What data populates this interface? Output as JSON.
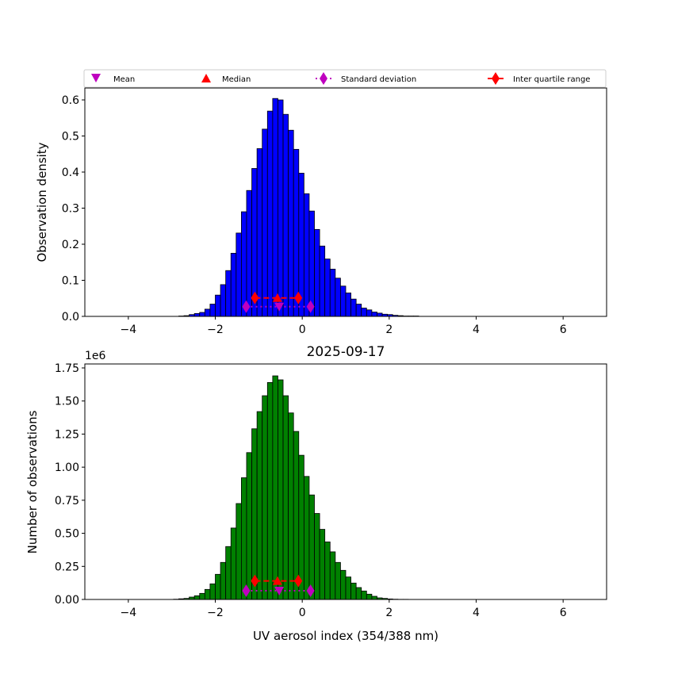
{
  "chart_data": [
    {
      "type": "bar",
      "subtype": "histogram",
      "ylabel": "Observation density",
      "xlim": [
        -5,
        7
      ],
      "ylim": [
        0,
        0.633
      ],
      "xticks": [
        "−4",
        "−2",
        "0",
        "2",
        "4",
        "6"
      ],
      "xtick_values": [
        -4,
        -2,
        0,
        2,
        4,
        6
      ],
      "yticks": [
        "0.0",
        "0.1",
        "0.2",
        "0.3",
        "0.4",
        "0.5",
        "0.6"
      ],
      "ytick_values": [
        0,
        0.1,
        0.2,
        0.3,
        0.4,
        0.5,
        0.6
      ],
      "bar_color": "#0000ff",
      "bin_start": -2.96,
      "bin_width": 0.12,
      "values": [
        0,
        0.001,
        0.002,
        0.005,
        0.008,
        0.011,
        0.02,
        0.034,
        0.059,
        0.088,
        0.127,
        0.175,
        0.231,
        0.29,
        0.349,
        0.41,
        0.465,
        0.519,
        0.569,
        0.604,
        0.6,
        0.56,
        0.516,
        0.463,
        0.397,
        0.34,
        0.292,
        0.241,
        0.195,
        0.159,
        0.131,
        0.106,
        0.084,
        0.065,
        0.048,
        0.034,
        0.023,
        0.018,
        0.012,
        0.009,
        0.006,
        0.005,
        0.003,
        0.002,
        0.001,
        0.001,
        0.001
      ],
      "stats": {
        "mean": -0.53,
        "median": -0.57,
        "std_range": [
          -1.29,
          0.19
        ],
        "iqr": [
          -1.09,
          -0.09
        ],
        "mean_y": 0.027,
        "median_y": 0.051
      }
    },
    {
      "type": "bar",
      "subtype": "histogram",
      "title": "2025-09-17",
      "xlabel": "UV aerosol index (354/388 nm)",
      "ylabel": "Number of observations",
      "y_offset_label": "1e6",
      "xlim": [
        -5,
        7
      ],
      "ylim": [
        0,
        1.78
      ],
      "xticks": [
        "−4",
        "−2",
        "0",
        "2",
        "4",
        "6"
      ],
      "xtick_values": [
        -4,
        -2,
        0,
        2,
        4,
        6
      ],
      "yticks": [
        "0.00",
        "0.25",
        "0.50",
        "0.75",
        "1.00",
        "1.25",
        "1.50",
        "1.75"
      ],
      "ytick_values": [
        0,
        0.25,
        0.5,
        0.75,
        1.0,
        1.25,
        1.5,
        1.75
      ],
      "bar_color": "#008000",
      "bin_start": -2.96,
      "bin_width": 0.12,
      "values": [
        0.002,
        0.005,
        0.008,
        0.018,
        0.028,
        0.046,
        0.076,
        0.118,
        0.19,
        0.28,
        0.4,
        0.54,
        0.725,
        0.92,
        1.11,
        1.29,
        1.42,
        1.54,
        1.64,
        1.69,
        1.66,
        1.54,
        1.41,
        1.27,
        1.09,
        0.93,
        0.79,
        0.65,
        0.53,
        0.435,
        0.36,
        0.28,
        0.22,
        0.17,
        0.124,
        0.09,
        0.064,
        0.04,
        0.024,
        0.012,
        0.008,
        0.004,
        0.002,
        0.001,
        0.001,
        0,
        0
      ],
      "stats": {
        "mean": -0.53,
        "median": -0.57,
        "std_range": [
          -1.29,
          0.19
        ],
        "iqr": [
          -1.09,
          -0.09
        ],
        "mean_y": 0.066,
        "median_y": 0.14
      }
    }
  ],
  "legend": {
    "placement": "top",
    "entries": [
      {
        "label": "Mean",
        "color": "#bf00bf",
        "marker": "triangle-down"
      },
      {
        "label": "Median",
        "color": "#ff0000",
        "marker": "triangle-up"
      },
      {
        "label": "Standard deviation",
        "color": "#bf00bf",
        "marker": "diamond-dotted"
      },
      {
        "label": "Inter quartile range",
        "color": "#ff0000",
        "marker": "diamond-solid"
      }
    ]
  }
}
